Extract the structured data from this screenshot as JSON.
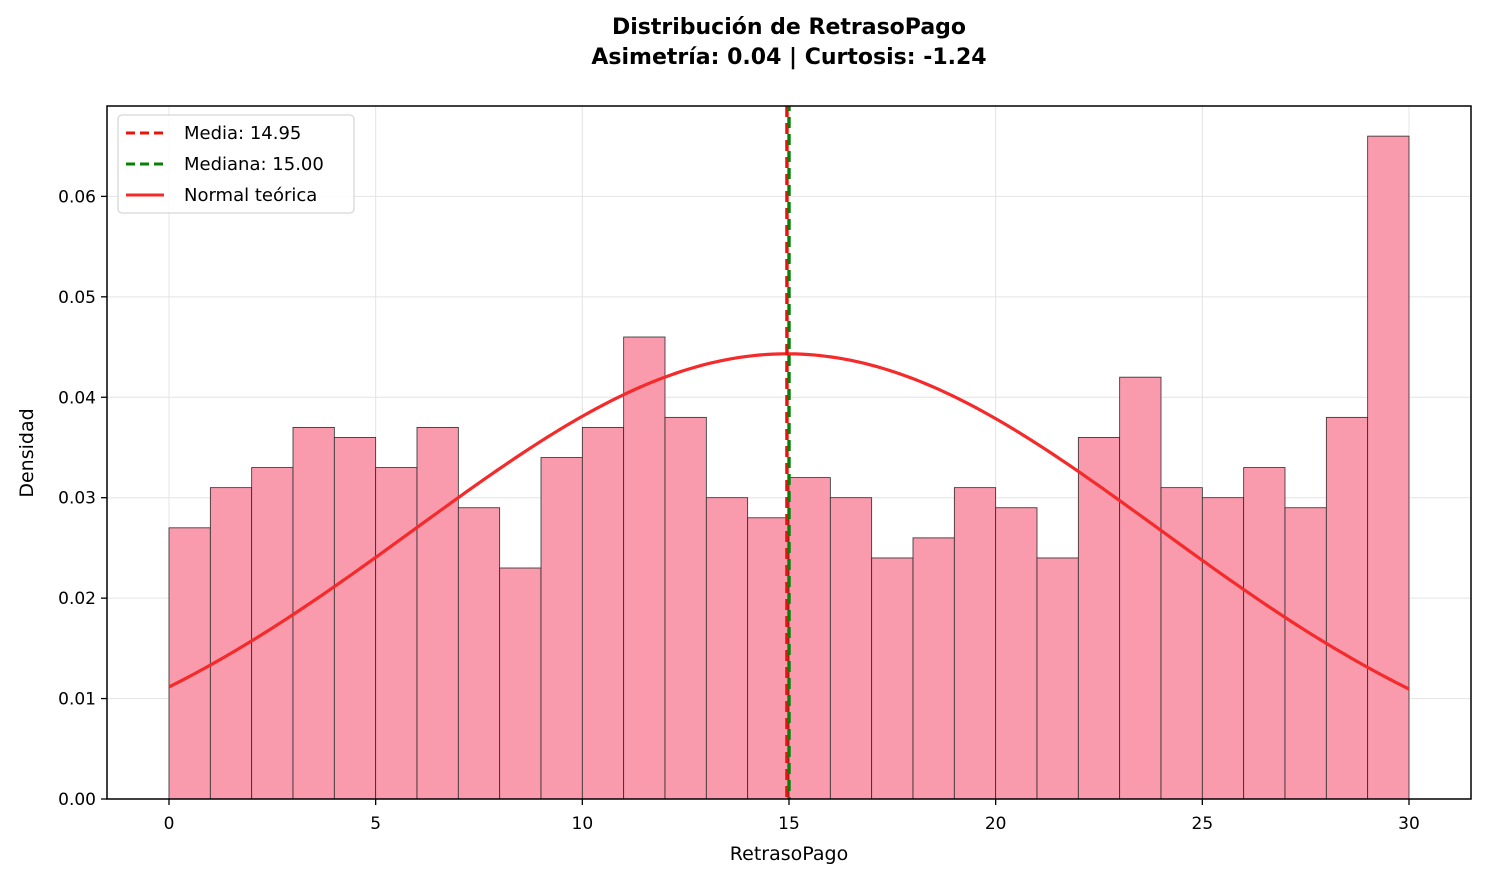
{
  "chart_data": {
    "type": "bar",
    "title_line1": "Distribución de RetrasoPago",
    "title_line2": "Asimetría: 0.04 | Curtosis: -1.24",
    "xlabel": "RetrasoPago",
    "ylabel": "Densidad",
    "xlim": [
      -1.5,
      31.5
    ],
    "ylim": [
      0,
      0.069
    ],
    "xticks": [
      0,
      5,
      10,
      15,
      20,
      25,
      30
    ],
    "yticks": [
      0.0,
      0.01,
      0.02,
      0.03,
      0.04,
      0.05,
      0.06
    ],
    "xtick_labels": [
      "0",
      "5",
      "10",
      "15",
      "20",
      "25",
      "30"
    ],
    "ytick_labels": [
      "0.00",
      "0.01",
      "0.02",
      "0.03",
      "0.04",
      "0.05",
      "0.06"
    ],
    "grid": true,
    "bins": {
      "edges": [
        0,
        1,
        2,
        3,
        4,
        5,
        6,
        7,
        8,
        9,
        10,
        11,
        12,
        13,
        14,
        15,
        16,
        17,
        18,
        19,
        20,
        21,
        22,
        23,
        24,
        25,
        26,
        27,
        28,
        29,
        30
      ],
      "values": [
        0.027,
        0.031,
        0.033,
        0.037,
        0.036,
        0.033,
        0.037,
        0.029,
        0.023,
        0.034,
        0.037,
        0.046,
        0.038,
        0.03,
        0.028,
        0.032,
        0.03,
        0.024,
        0.026,
        0.031,
        0.029,
        0.024,
        0.036,
        0.042,
        0.031,
        0.03,
        0.033,
        0.029,
        0.038,
        0.066
      ]
    },
    "mean": 14.95,
    "median": 15.0,
    "normal": {
      "mu": 14.95,
      "sigma": 9.0
    },
    "legend": {
      "placement": "top-left",
      "entries": [
        {
          "label": "Media: 14.95",
          "style": "dashed",
          "color": "#e8140c"
        },
        {
          "label": "Mediana: 15.00",
          "style": "dashed",
          "color": "#068006"
        },
        {
          "label": "Normal teórica",
          "style": "solid",
          "color": "#f52a2a"
        }
      ]
    },
    "colors": {
      "bar_fill": "#f99bad",
      "bar_edge": "#2a2a2a",
      "mean_line": "#e8140c",
      "median_line": "#068006",
      "normal_curve": "#f52a2a",
      "grid": "#e4e4e4"
    }
  }
}
